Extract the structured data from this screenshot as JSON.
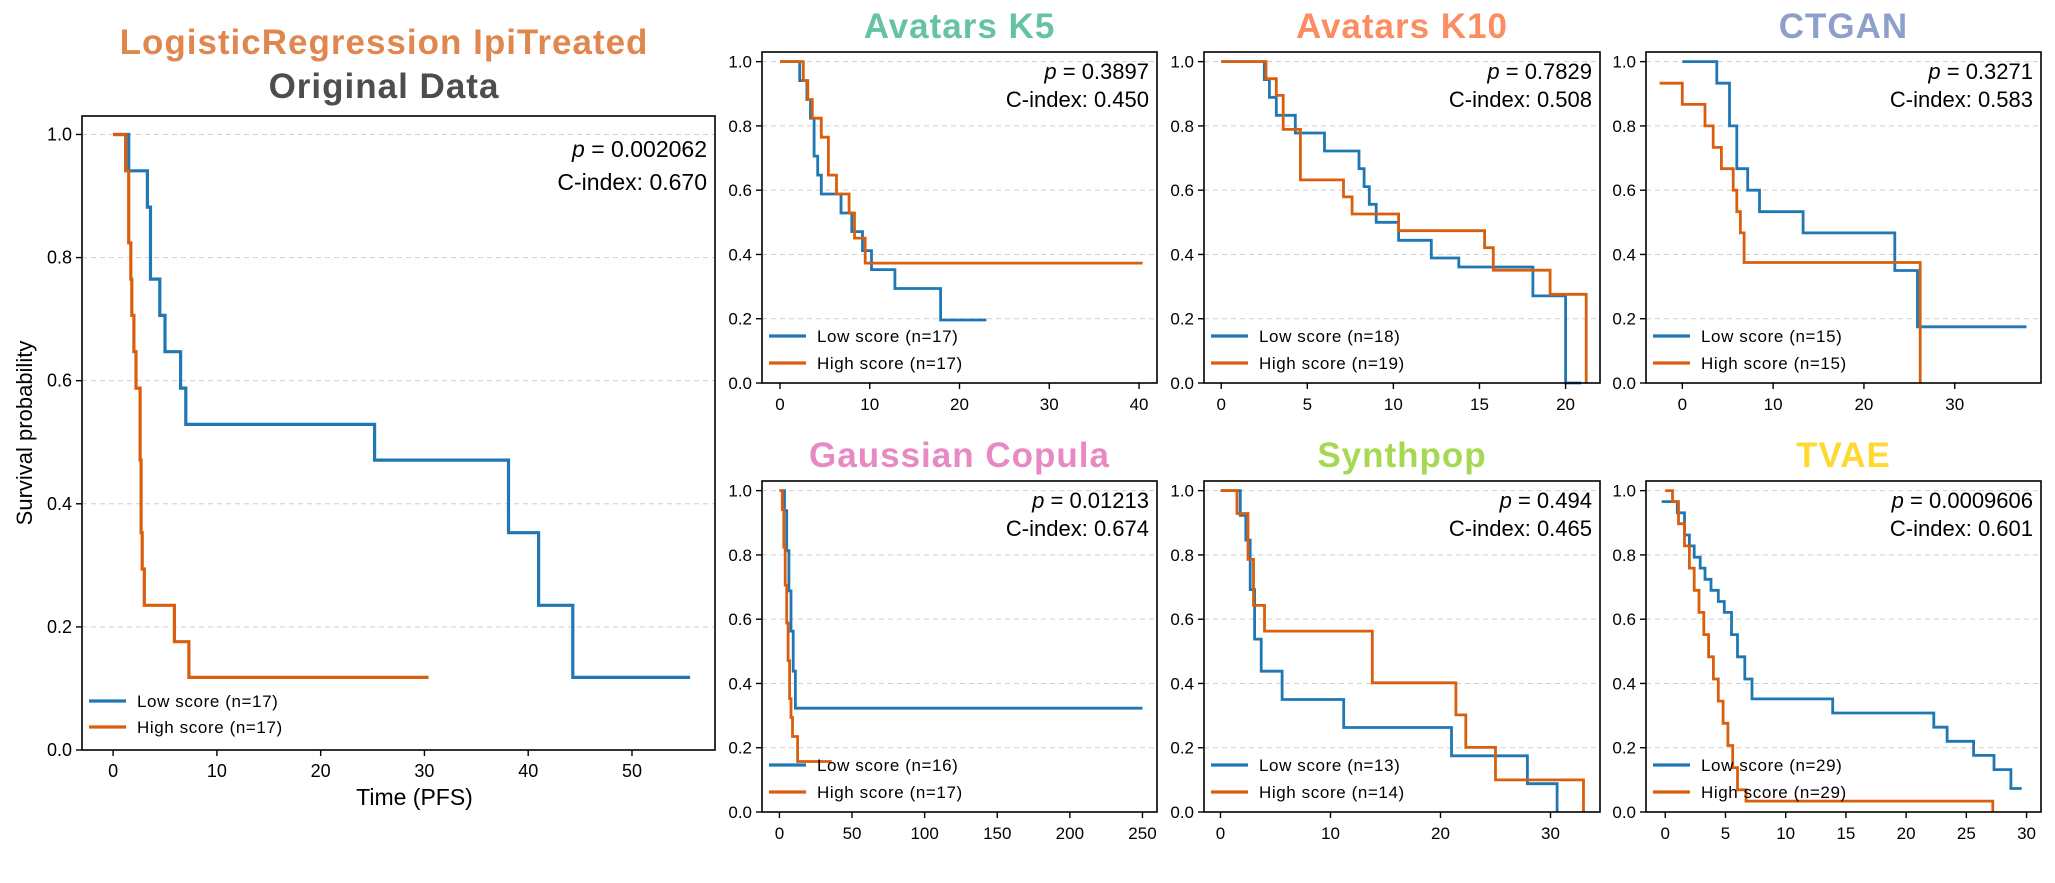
{
  "figure": {
    "title_line1": "LogisticRegression IpiTreated",
    "title_line2": "Original Data"
  },
  "colors": {
    "low": "#1f77b4",
    "high": "#d95f0e",
    "avatars_k5": "#66c2a5",
    "avatars_k10": "#fc8d62",
    "ctgan": "#8da0cb",
    "gaussian_copula": "#e78ac3",
    "synthpop": "#a6d854",
    "tvae": "#ffd92f",
    "main_title1": "#e0874f",
    "main_title2": "#4d4d4d"
  },
  "chart_data": [
    {
      "id": "original",
      "type": "line",
      "subtitle": "",
      "ylabel": "Survival probability",
      "xlabel": "Time (PFS)",
      "p_label": "p",
      "p_value": " = 0.002062",
      "cindex": "C-index: 0.670",
      "xlim": [
        -3,
        58
      ],
      "ylim": [
        0,
        1.03
      ],
      "xticks": [
        0,
        10,
        20,
        30,
        40,
        50
      ],
      "yticks": [
        "0.0",
        "0.2",
        "0.4",
        "0.6",
        "0.8",
        "1.0"
      ],
      "grid": "horizontal",
      "legend": "lower-left",
      "series": [
        {
          "name": "Low score (n=17)",
          "x": [
            0,
            1.5,
            1.5,
            3.3,
            3.3,
            3.6,
            3.6,
            4.5,
            4.5,
            5.0,
            5.0,
            6.5,
            6.5,
            7.0,
            7.0,
            25.2,
            25.2,
            38.1,
            38.1,
            41.0,
            41.0,
            44.3,
            44.3,
            55.6
          ],
          "y": [
            1.0,
            1.0,
            0.941,
            0.941,
            0.882,
            0.882,
            0.765,
            0.765,
            0.706,
            0.706,
            0.647,
            0.647,
            0.588,
            0.588,
            0.529,
            0.529,
            0.471,
            0.471,
            0.353,
            0.353,
            0.235,
            0.235,
            0.118,
            0.118
          ]
        },
        {
          "name": "High score (n=17)",
          "x": [
            0,
            1.2,
            1.2,
            1.5,
            1.5,
            1.7,
            1.7,
            1.8,
            1.8,
            2.0,
            2.0,
            2.2,
            2.2,
            2.6,
            2.6,
            2.7,
            2.7,
            2.8,
            2.8,
            3.0,
            3.0,
            3.1,
            3.1,
            5.9,
            5.9,
            7.3,
            7.3,
            30.4
          ],
          "y": [
            1.0,
            1.0,
            0.941,
            0.941,
            0.824,
            0.824,
            0.765,
            0.765,
            0.706,
            0.706,
            0.647,
            0.647,
            0.588,
            0.588,
            0.471,
            0.471,
            0.353,
            0.353,
            0.294,
            0.294,
            0.235,
            0.235,
            0.235,
            0.235,
            0.176,
            0.176,
            0.118,
            0.118
          ]
        }
      ]
    },
    {
      "id": "avatars_k5",
      "type": "line",
      "subtitle": "Avatars K5",
      "p_label": "p",
      "p_value": " = 0.3897",
      "cindex": "C-index: 0.450",
      "xlim": [
        -2,
        42
      ],
      "ylim": [
        0,
        1.03
      ],
      "xticks": [
        0,
        10,
        20,
        30,
        40
      ],
      "yticks": [
        "0.0",
        "0.2",
        "0.4",
        "0.6",
        "0.8",
        "1.0"
      ],
      "grid": "horizontal",
      "legend": "lower-left",
      "series": [
        {
          "name": "Low score (n=17)",
          "x": [
            0,
            2.2,
            2.2,
            3.0,
            3.0,
            3.4,
            3.4,
            3.8,
            3.8,
            4.2,
            4.2,
            4.6,
            4.6,
            6.8,
            6.8,
            8.0,
            8.0,
            9.2,
            9.2,
            10.2,
            10.2,
            12.8,
            12.8,
            17.9,
            17.9,
            23.0
          ],
          "y": [
            1.0,
            1.0,
            0.941,
            0.941,
            0.882,
            0.882,
            0.824,
            0.824,
            0.706,
            0.706,
            0.647,
            0.647,
            0.588,
            0.588,
            0.529,
            0.529,
            0.471,
            0.471,
            0.412,
            0.412,
            0.353,
            0.353,
            0.294,
            0.294,
            0.196,
            0.196
          ]
        },
        {
          "name": "High score (n=17)",
          "x": [
            0,
            2.6,
            2.6,
            3.1,
            3.1,
            3.6,
            3.6,
            4.6,
            4.6,
            5.4,
            5.4,
            6.3,
            6.3,
            7.7,
            7.7,
            8.3,
            8.3,
            9.5,
            9.5,
            12.1,
            12.1,
            40.4
          ],
          "y": [
            1.0,
            1.0,
            0.941,
            0.941,
            0.882,
            0.882,
            0.824,
            0.824,
            0.765,
            0.765,
            0.647,
            0.647,
            0.588,
            0.588,
            0.529,
            0.529,
            0.451,
            0.451,
            0.373,
            0.373,
            0.373,
            0.373
          ]
        }
      ]
    },
    {
      "id": "avatars_k10",
      "type": "line",
      "subtitle": "Avatars K10",
      "p_label": "p",
      "p_value": " = 0.7829",
      "cindex": "C-index: 0.508",
      "xlim": [
        -1,
        22
      ],
      "ylim": [
        0,
        1.03
      ],
      "xticks": [
        0,
        5,
        10,
        15,
        20
      ],
      "yticks": [
        "0.0",
        "0.2",
        "0.4",
        "0.6",
        "0.8",
        "1.0"
      ],
      "grid": "horizontal",
      "legend": "lower-left",
      "series": [
        {
          "name": "Low score (n=18)",
          "x": [
            0,
            2.5,
            2.5,
            2.8,
            2.8,
            3.2,
            3.2,
            4.3,
            4.3,
            6.0,
            6.0,
            8.0,
            8.0,
            8.3,
            8.3,
            8.6,
            8.6,
            9.0,
            9.0,
            10.3,
            10.3,
            12.2,
            12.2,
            13.8,
            13.8,
            18.1,
            18.1,
            20.0,
            20.0,
            20.9,
            20.9
          ],
          "y": [
            1.0,
            1.0,
            0.944,
            0.944,
            0.889,
            0.889,
            0.833,
            0.833,
            0.778,
            0.778,
            0.722,
            0.722,
            0.667,
            0.667,
            0.611,
            0.611,
            0.556,
            0.556,
            0.5,
            0.5,
            0.444,
            0.444,
            0.389,
            0.389,
            0.361,
            0.361,
            0.271,
            0.271,
            0.0,
            0.0,
            0.0
          ]
        },
        {
          "name": "High score (n=19)",
          "x": [
            0,
            2.6,
            2.6,
            3.2,
            3.2,
            3.6,
            3.6,
            4.6,
            4.6,
            7.1,
            7.1,
            7.6,
            7.6,
            10.3,
            10.3,
            15.3,
            15.3,
            15.8,
            15.8,
            19.1,
            19.1,
            21.2,
            21.2
          ],
          "y": [
            1.0,
            1.0,
            0.947,
            0.947,
            0.895,
            0.895,
            0.789,
            0.789,
            0.632,
            0.632,
            0.579,
            0.579,
            0.526,
            0.526,
            0.474,
            0.474,
            0.421,
            0.421,
            0.351,
            0.351,
            0.276,
            0.276,
            0.0
          ]
        }
      ]
    },
    {
      "id": "ctgan",
      "type": "line",
      "subtitle": "CTGAN",
      "p_label": "p",
      "p_value": " = 0.3271",
      "cindex": "C-index: 0.583",
      "xlim": [
        -4,
        39.5
      ],
      "ylim": [
        0,
        1.03
      ],
      "xticks": [
        0,
        10,
        20,
        30
      ],
      "yticks": [
        "0.0",
        "0.2",
        "0.4",
        "0.6",
        "0.8",
        "1.0"
      ],
      "grid": "horizontal",
      "legend": "lower-left",
      "series": [
        {
          "name": "Low score (n=15)",
          "x": [
            0,
            3.8,
            3.8,
            5.2,
            5.2,
            6.0,
            6.0,
            7.2,
            7.2,
            8.5,
            8.5,
            13.3,
            13.3,
            23.4,
            23.4,
            25.9,
            25.9,
            37.9
          ],
          "y": [
            1.0,
            1.0,
            0.933,
            0.933,
            0.8,
            0.8,
            0.667,
            0.667,
            0.6,
            0.6,
            0.533,
            0.533,
            0.467,
            0.467,
            0.35,
            0.35,
            0.175,
            0.175
          ]
        },
        {
          "name": "High score (n=15)",
          "x": [
            -2.5,
            0,
            0,
            2.5,
            2.5,
            3.4,
            3.4,
            4.3,
            4.3,
            5.6,
            5.6,
            6.0,
            6.0,
            6.4,
            6.4,
            6.8,
            6.8,
            26.2,
            26.2
          ],
          "y": [
            0.933,
            0.933,
            0.867,
            0.867,
            0.8,
            0.8,
            0.733,
            0.733,
            0.667,
            0.667,
            0.6,
            0.6,
            0.533,
            0.533,
            0.467,
            0.467,
            0.375,
            0.375,
            0.0
          ]
        }
      ]
    },
    {
      "id": "gaussian_copula",
      "type": "line",
      "subtitle": "Gaussian Copula",
      "p_label": "p",
      "p_value": " = 0.01213",
      "cindex": "C-index: 0.674",
      "xlim": [
        -12,
        260
      ],
      "ylim": [
        0,
        1.03
      ],
      "xticks": [
        0,
        50,
        100,
        150,
        200,
        250
      ],
      "yticks": [
        "0.0",
        "0.2",
        "0.4",
        "0.6",
        "0.8",
        "1.0"
      ],
      "grid": "horizontal",
      "legend": "lower-left",
      "series": [
        {
          "name": "Low score (n=16)",
          "x": [
            0,
            3.5,
            3.5,
            5.0,
            5.0,
            6.5,
            6.5,
            8.0,
            8.0,
            9.5,
            9.5,
            11.0,
            11.0,
            250
          ],
          "y": [
            1.0,
            1.0,
            0.938,
            0.938,
            0.813,
            0.813,
            0.688,
            0.688,
            0.563,
            0.563,
            0.438,
            0.438,
            0.323,
            0.323
          ]
        },
        {
          "name": "High score (n=17)",
          "x": [
            0,
            2.0,
            2.0,
            3.0,
            3.0,
            4.0,
            4.0,
            5.0,
            5.0,
            6.0,
            6.0,
            7.0,
            7.0,
            8.0,
            8.0,
            9.0,
            9.0,
            12.5,
            12.5,
            36.0
          ],
          "y": [
            1.0,
            1.0,
            0.941,
            0.941,
            0.824,
            0.824,
            0.706,
            0.706,
            0.588,
            0.588,
            0.471,
            0.471,
            0.353,
            0.353,
            0.294,
            0.294,
            0.235,
            0.235,
            0.157,
            0.157
          ]
        }
      ]
    },
    {
      "id": "synthpop",
      "type": "line",
      "subtitle": "Synthpop",
      "p_label": "p",
      "p_value": " = 0.494",
      "cindex": "C-index: 0.465",
      "xlim": [
        -1.5,
        34.5
      ],
      "ylim": [
        0,
        1.03
      ],
      "xticks": [
        0,
        10,
        20,
        30
      ],
      "yticks": [
        "0.0",
        "0.2",
        "0.4",
        "0.6",
        "0.8",
        "1.0"
      ],
      "grid": "horizontal",
      "legend": "lower-left",
      "series": [
        {
          "name": "Low score (n=13)",
          "x": [
            0,
            1.8,
            1.8,
            2.3,
            2.3,
            2.7,
            2.7,
            3.1,
            3.1,
            3.7,
            3.7,
            5.6,
            5.6,
            11.2,
            11.2,
            21.0,
            21.0,
            27.9,
            27.9,
            30.6,
            30.6
          ],
          "y": [
            1.0,
            1.0,
            0.923,
            0.923,
            0.846,
            0.846,
            0.692,
            0.692,
            0.538,
            0.538,
            0.438,
            0.438,
            0.35,
            0.35,
            0.263,
            0.263,
            0.175,
            0.175,
            0.088,
            0.088,
            0.0
          ]
        },
        {
          "name": "High score (n=14)",
          "x": [
            0,
            1.5,
            1.5,
            2.5,
            2.5,
            3.0,
            3.0,
            4.0,
            4.0,
            13.8,
            13.8,
            21.4,
            21.4,
            22.3,
            22.3,
            25.0,
            25.0,
            29.0,
            29.0,
            33.0,
            33.0
          ],
          "y": [
            1.0,
            1.0,
            0.929,
            0.929,
            0.786,
            0.786,
            0.643,
            0.643,
            0.563,
            0.563,
            0.402,
            0.402,
            0.302,
            0.302,
            0.201,
            0.201,
            0.1,
            0.1,
            0.1,
            0.1,
            0.0
          ]
        }
      ]
    },
    {
      "id": "tvae",
      "type": "line",
      "subtitle": "TVAE",
      "p_label": "p",
      "p_value": " = 0.0009606",
      "cindex": "C-index: 0.601",
      "xlim": [
        -1.6,
        31.2
      ],
      "ylim": [
        0,
        1.03
      ],
      "xticks": [
        0,
        5,
        10,
        15,
        20,
        25,
        30
      ],
      "yticks": [
        "0.0",
        "0.2",
        "0.4",
        "0.6",
        "0.8",
        "1.0"
      ],
      "grid": "horizontal",
      "legend": "lower-left",
      "series": [
        {
          "name": "Low score (n=29)",
          "x": [
            -0.3,
            1.0,
            1.0,
            1.6,
            1.6,
            2.0,
            2.0,
            2.4,
            2.4,
            2.9,
            2.9,
            3.3,
            3.3,
            3.8,
            3.8,
            4.4,
            4.4,
            4.9,
            4.9,
            5.5,
            5.5,
            6.0,
            6.0,
            6.6,
            6.6,
            7.2,
            7.2,
            13.9,
            13.9,
            22.3,
            22.3,
            23.4,
            23.4,
            25.6,
            25.6,
            27.3,
            27.3,
            28.7,
            28.7,
            29.6
          ],
          "y": [
            0.966,
            0.966,
            0.931,
            0.931,
            0.862,
            0.862,
            0.828,
            0.828,
            0.793,
            0.793,
            0.759,
            0.759,
            0.724,
            0.724,
            0.69,
            0.69,
            0.655,
            0.655,
            0.621,
            0.621,
            0.552,
            0.552,
            0.483,
            0.483,
            0.414,
            0.414,
            0.352,
            0.352,
            0.308,
            0.308,
            0.264,
            0.264,
            0.22,
            0.22,
            0.176,
            0.176,
            0.132,
            0.132,
            0.073,
            0.073
          ]
        },
        {
          "name": "High score (n=29)",
          "x": [
            0,
            0.6,
            0.6,
            1.1,
            1.1,
            1.6,
            1.6,
            2.0,
            2.0,
            2.4,
            2.4,
            2.8,
            2.8,
            3.2,
            3.2,
            3.6,
            3.6,
            4.0,
            4.0,
            4.4,
            4.4,
            4.8,
            4.8,
            5.2,
            5.2,
            5.6,
            5.6,
            6.0,
            6.0,
            6.7,
            6.7,
            27.2,
            27.2
          ],
          "y": [
            1.0,
            1.0,
            0.966,
            0.966,
            0.897,
            0.897,
            0.828,
            0.828,
            0.759,
            0.759,
            0.69,
            0.69,
            0.621,
            0.621,
            0.552,
            0.552,
            0.483,
            0.483,
            0.414,
            0.414,
            0.345,
            0.345,
            0.276,
            0.276,
            0.207,
            0.207,
            0.138,
            0.138,
            0.069,
            0.069,
            0.034,
            0.034,
            0.0
          ]
        }
      ]
    }
  ]
}
